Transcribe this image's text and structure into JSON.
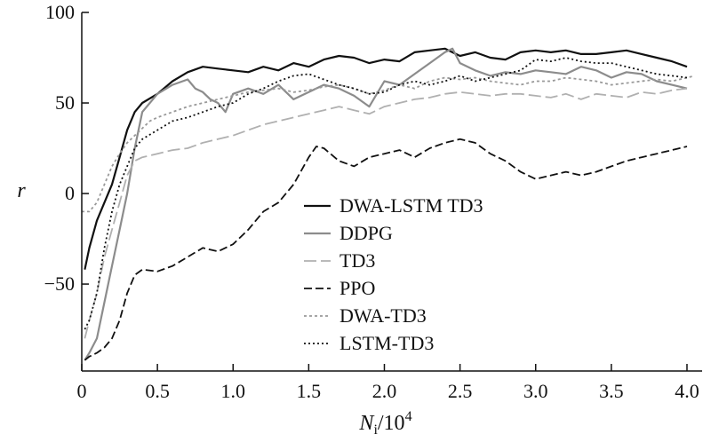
{
  "chart_data": {
    "type": "line",
    "xlabel_main": "N",
    "xlabel_sub": "i",
    "xlabel_rest": "/10",
    "xlabel_sup": "4",
    "ylabel": "r",
    "xlim": [
      0,
      4.1
    ],
    "ylim": [
      -98,
      100
    ],
    "x_ticks": [
      0,
      0.5,
      1.0,
      1.5,
      2.0,
      2.5,
      3.0,
      3.5,
      4.0
    ],
    "x_tick_labels": [
      "0",
      "0.5",
      "1.0",
      "1.5",
      "2.0",
      "2.5",
      "3.0",
      "3.5",
      "4.0"
    ],
    "y_ticks": [
      -50,
      0,
      50,
      100
    ],
    "y_tick_labels": [
      "−50",
      "0",
      "50",
      "100"
    ],
    "legend_position": "center",
    "series": [
      {
        "name": "DWA-LSTM TD3",
        "color": "#111111",
        "width": 2.2,
        "dash": "",
        "x": [
          0.02,
          0.05,
          0.1,
          0.15,
          0.2,
          0.25,
          0.3,
          0.35,
          0.4,
          0.5,
          0.6,
          0.7,
          0.8,
          0.9,
          1.0,
          1.1,
          1.2,
          1.3,
          1.4,
          1.5,
          1.6,
          1.7,
          1.8,
          1.9,
          2.0,
          2.1,
          2.2,
          2.3,
          2.4,
          2.5,
          2.6,
          2.7,
          2.8,
          2.9,
          3.0,
          3.1,
          3.2,
          3.3,
          3.4,
          3.5,
          3.6,
          3.7,
          3.8,
          3.9,
          4.0
        ],
        "y": [
          -42,
          -30,
          -15,
          -5,
          5,
          20,
          35,
          45,
          50,
          55,
          62,
          67,
          70,
          69,
          68,
          67,
          70,
          68,
          72,
          70,
          74,
          76,
          75,
          72,
          74,
          73,
          78,
          79,
          80,
          76,
          78,
          75,
          74,
          78,
          79,
          78,
          79,
          77,
          77,
          78,
          79,
          77,
          75,
          73,
          70
        ]
      },
      {
        "name": "DDPG",
        "color": "#8c8c8c",
        "width": 2.2,
        "dash": "",
        "x": [
          0.02,
          0.05,
          0.1,
          0.15,
          0.2,
          0.25,
          0.3,
          0.35,
          0.4,
          0.45,
          0.5,
          0.6,
          0.7,
          0.75,
          0.8,
          0.85,
          0.9,
          0.95,
          1.0,
          1.1,
          1.2,
          1.3,
          1.4,
          1.5,
          1.6,
          1.7,
          1.8,
          1.9,
          2.0,
          2.1,
          2.2,
          2.3,
          2.4,
          2.45,
          2.5,
          2.6,
          2.7,
          2.8,
          2.9,
          3.0,
          3.1,
          3.2,
          3.3,
          3.4,
          3.5,
          3.6,
          3.7,
          3.8,
          3.9,
          4.0
        ],
        "y": [
          -92,
          -88,
          -80,
          -60,
          -40,
          -20,
          0,
          25,
          45,
          50,
          55,
          60,
          63,
          58,
          56,
          52,
          50,
          45,
          55,
          58,
          55,
          60,
          52,
          56,
          60,
          58,
          54,
          48,
          62,
          60,
          66,
          72,
          78,
          80,
          72,
          68,
          65,
          67,
          66,
          68,
          67,
          66,
          70,
          68,
          64,
          67,
          66,
          62,
          60,
          58
        ]
      },
      {
        "name": "TD3",
        "color": "#b0b0b0",
        "width": 1.8,
        "dash": "14 5",
        "x": [
          0.02,
          0.05,
          0.1,
          0.15,
          0.2,
          0.25,
          0.3,
          0.35,
          0.4,
          0.5,
          0.6,
          0.7,
          0.8,
          0.9,
          1.0,
          1.1,
          1.2,
          1.3,
          1.4,
          1.5,
          1.6,
          1.7,
          1.8,
          1.9,
          2.0,
          2.1,
          2.2,
          2.3,
          2.4,
          2.5,
          2.6,
          2.7,
          2.8,
          2.9,
          3.0,
          3.1,
          3.2,
          3.3,
          3.4,
          3.5,
          3.6,
          3.7,
          3.8,
          3.9,
          4.0
        ],
        "y": [
          -80,
          -70,
          -55,
          -35,
          -20,
          -5,
          10,
          18,
          20,
          22,
          24,
          25,
          28,
          30,
          32,
          35,
          38,
          40,
          42,
          44,
          46,
          48,
          46,
          44,
          48,
          50,
          52,
          53,
          55,
          56,
          55,
          54,
          55,
          55,
          54,
          53,
          55,
          52,
          55,
          54,
          53,
          56,
          55,
          57,
          58
        ]
      },
      {
        "name": "PPO",
        "color": "#111111",
        "width": 1.8,
        "dash": "9 4",
        "x": [
          0.02,
          0.05,
          0.1,
          0.15,
          0.2,
          0.25,
          0.3,
          0.35,
          0.4,
          0.5,
          0.6,
          0.7,
          0.8,
          0.9,
          1.0,
          1.1,
          1.2,
          1.3,
          1.4,
          1.5,
          1.55,
          1.6,
          1.7,
          1.8,
          1.9,
          2.0,
          2.1,
          2.2,
          2.3,
          2.4,
          2.5,
          2.6,
          2.7,
          2.8,
          2.9,
          3.0,
          3.1,
          3.2,
          3.3,
          3.4,
          3.5,
          3.6,
          3.7,
          3.8,
          3.9,
          4.0
        ],
        "y": [
          -92,
          -90,
          -88,
          -85,
          -80,
          -70,
          -55,
          -45,
          -42,
          -43,
          -40,
          -35,
          -30,
          -32,
          -28,
          -20,
          -10,
          -5,
          5,
          20,
          26,
          25,
          18,
          15,
          20,
          22,
          24,
          20,
          25,
          28,
          30,
          28,
          22,
          18,
          12,
          8,
          10,
          12,
          10,
          12,
          15,
          18,
          20,
          22,
          24,
          26
        ]
      },
      {
        "name": "DWA-TD3",
        "color": "#999999",
        "width": 1.8,
        "dash": "3 3",
        "x": [
          0.0,
          0.05,
          0.1,
          0.15,
          0.2,
          0.25,
          0.3,
          0.35,
          0.4,
          0.45,
          0.5,
          0.6,
          0.7,
          0.8,
          0.9,
          1.0,
          1.1,
          1.2,
          1.3,
          1.4,
          1.5,
          1.6,
          1.7,
          1.8,
          1.9,
          2.0,
          2.1,
          2.2,
          2.3,
          2.4,
          2.5,
          2.6,
          2.7,
          2.8,
          2.9,
          3.0,
          3.1,
          3.2,
          3.3,
          3.4,
          3.5,
          3.6,
          3.7,
          3.8,
          3.9,
          4.0,
          4.05
        ],
        "y": [
          -10,
          -10,
          -5,
          5,
          15,
          22,
          28,
          32,
          36,
          40,
          42,
          45,
          48,
          50,
          52,
          54,
          56,
          57,
          58,
          56,
          57,
          59,
          60,
          58,
          55,
          57,
          60,
          58,
          62,
          64,
          63,
          64,
          62,
          61,
          60,
          62,
          62,
          64,
          63,
          62,
          60,
          61,
          62,
          63,
          62,
          64,
          65
        ]
      },
      {
        "name": "LSTM-TD3",
        "color": "#111111",
        "width": 1.8,
        "dash": "2 3",
        "x": [
          0.02,
          0.05,
          0.1,
          0.15,
          0.2,
          0.25,
          0.3,
          0.35,
          0.4,
          0.5,
          0.6,
          0.7,
          0.8,
          0.9,
          1.0,
          1.1,
          1.2,
          1.3,
          1.4,
          1.5,
          1.6,
          1.7,
          1.8,
          1.9,
          2.0,
          2.1,
          2.2,
          2.3,
          2.4,
          2.5,
          2.6,
          2.7,
          2.8,
          2.9,
          3.0,
          3.1,
          3.2,
          3.3,
          3.4,
          3.5,
          3.6,
          3.7,
          3.8,
          3.9,
          4.0
        ],
        "y": [
          -75,
          -70,
          -55,
          -30,
          -10,
          5,
          15,
          25,
          30,
          35,
          40,
          42,
          45,
          48,
          50,
          55,
          58,
          62,
          65,
          66,
          63,
          60,
          58,
          55,
          56,
          60,
          62,
          60,
          62,
          65,
          62,
          64,
          66,
          68,
          74,
          73,
          75,
          73,
          72,
          72,
          70,
          68,
          66,
          65,
          64
        ]
      }
    ]
  }
}
